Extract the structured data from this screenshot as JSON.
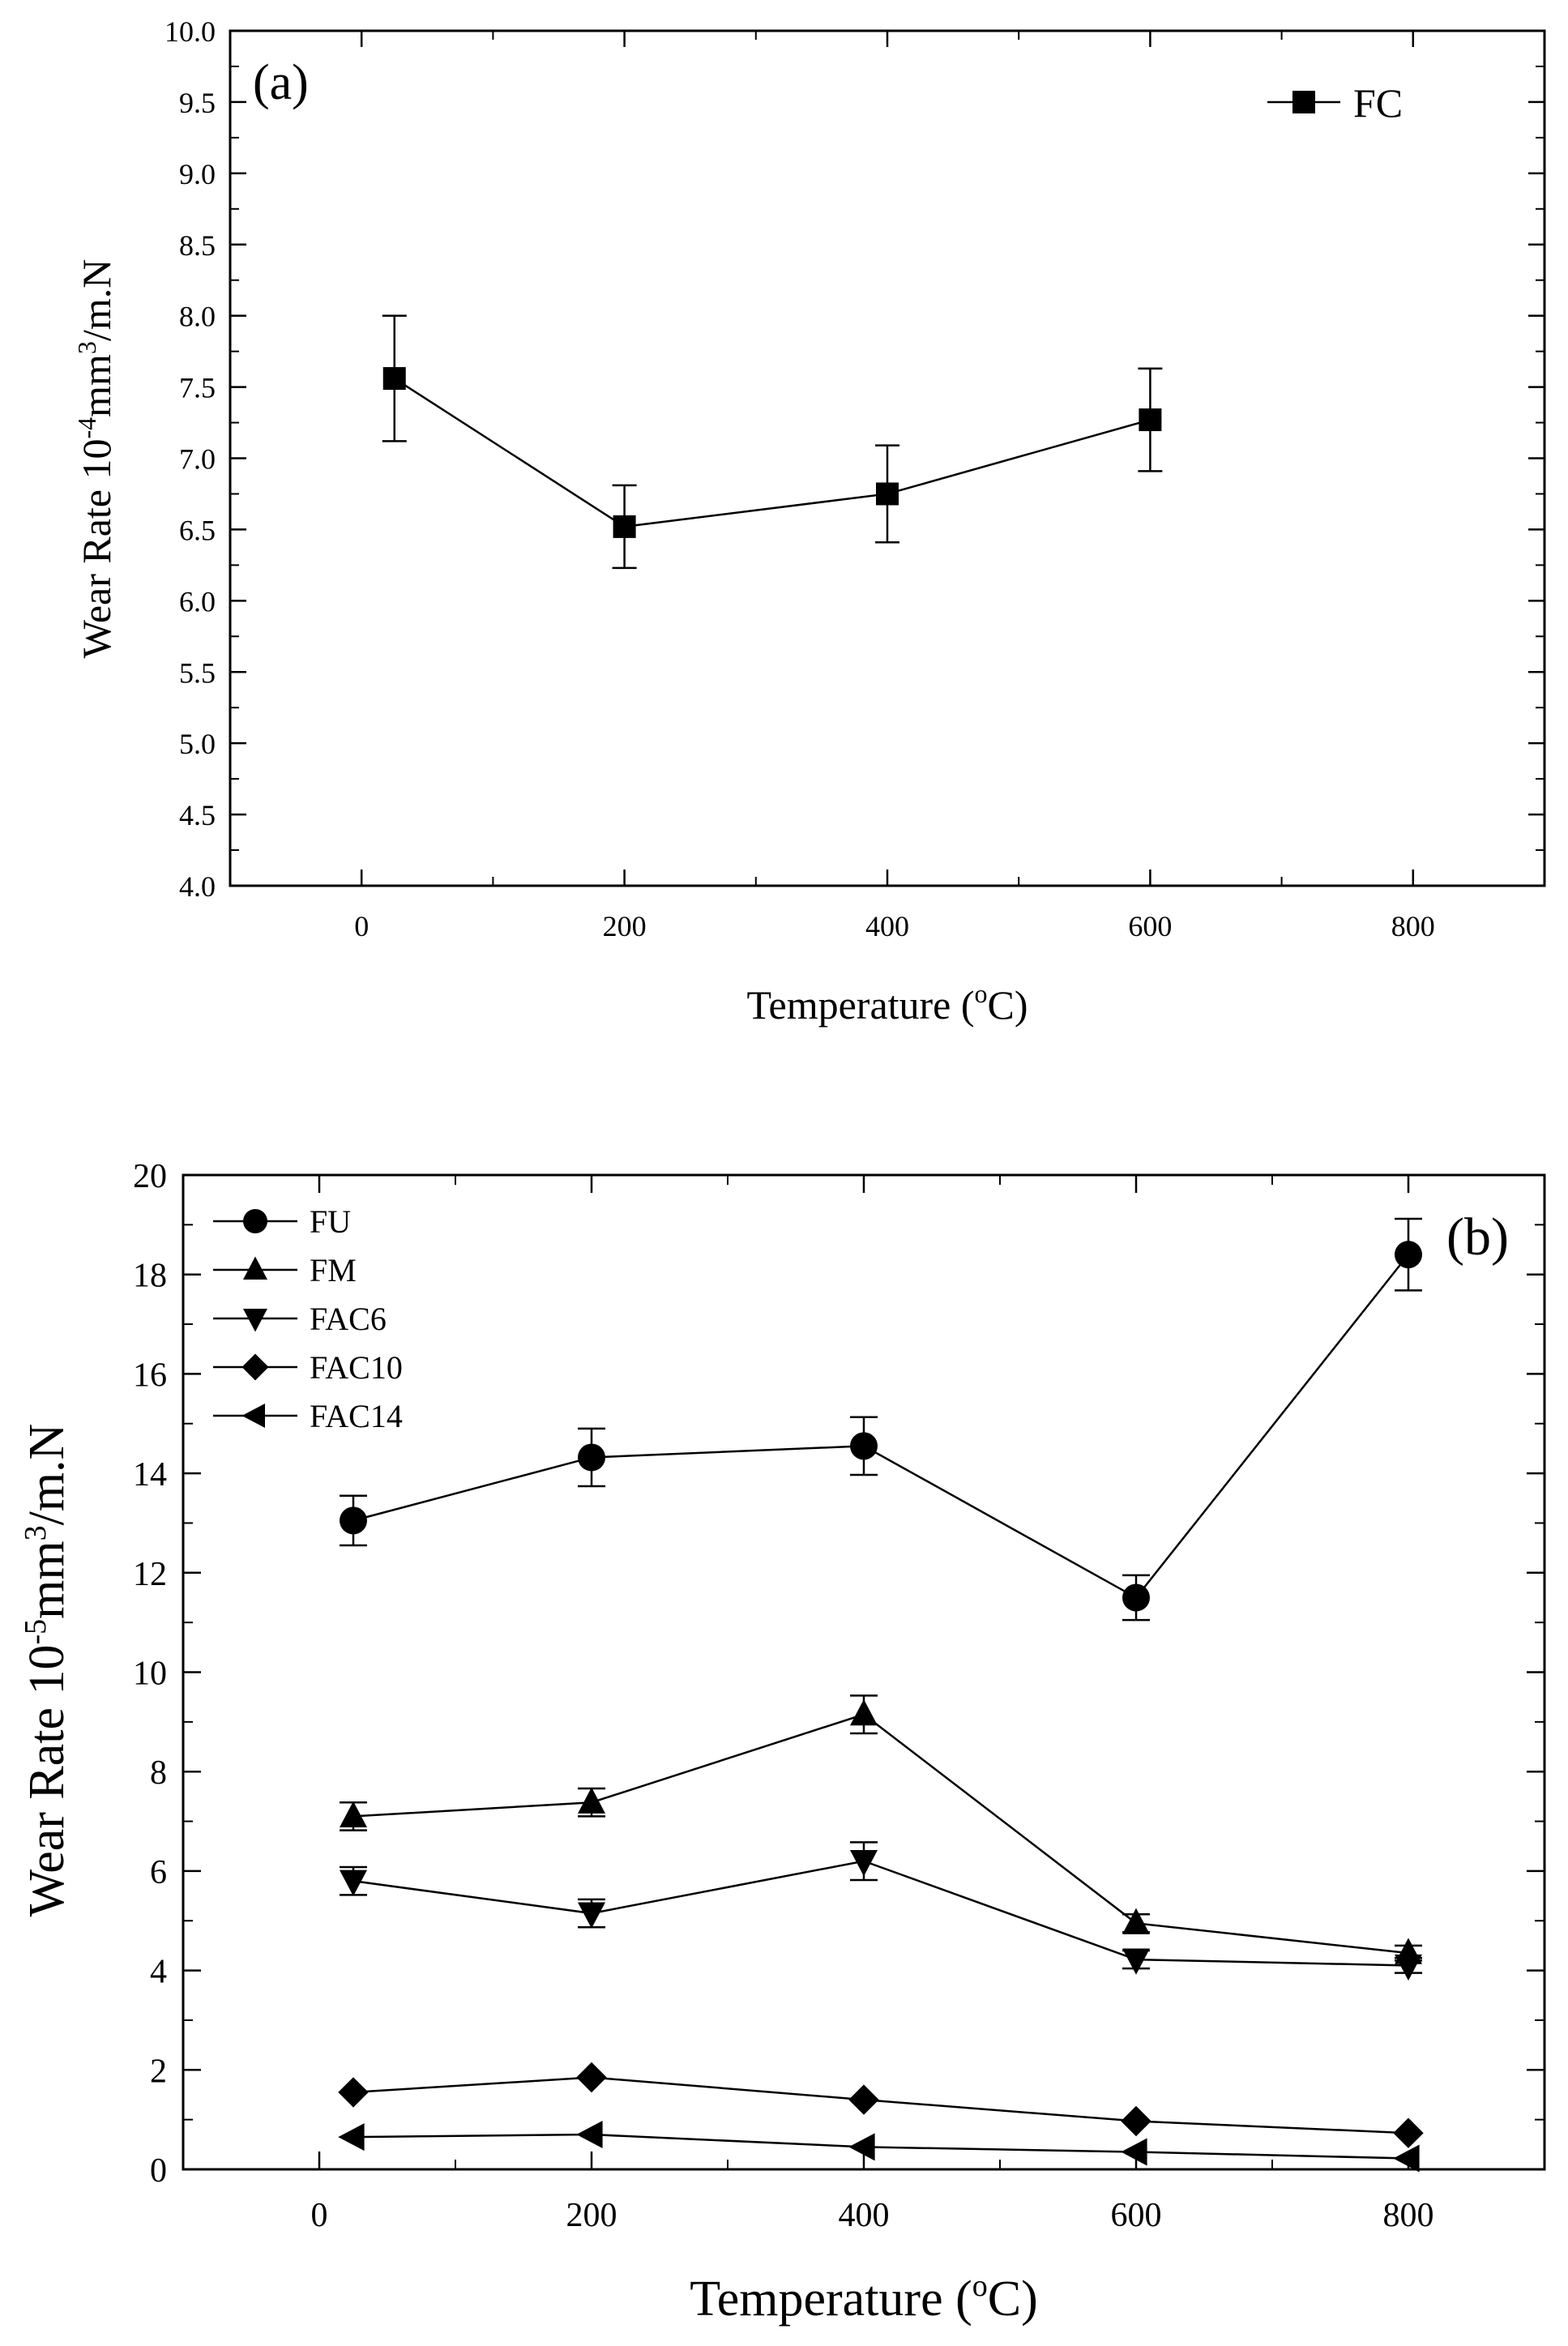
{
  "chart_data": [
    {
      "type": "line",
      "panel_label": "(a)",
      "xlabel": "Temperature",
      "xlabel_unit_open": " (",
      "xlabel_unit_sup": "o",
      "xlabel_unit_close": "C)",
      "ylabel": "Wear Rate 10",
      "ylabel_sup1": "-4",
      "ylabel_mid": "mm",
      "ylabel_sup2": "3",
      "ylabel_end": "/m.N",
      "xlim": [
        -100,
        900
      ],
      "ylim": [
        4.0,
        10.0
      ],
      "x_ticks": [
        0,
        200,
        400,
        600,
        800
      ],
      "y_ticks": [
        "4.0",
        "4.5",
        "5.0",
        "5.5",
        "6.0",
        "6.5",
        "7.0",
        "7.5",
        "8.0",
        "8.5",
        "9.0",
        "9.5",
        "10.0"
      ],
      "legend_position": "top-right",
      "series": [
        {
          "name": "FC",
          "marker": "square",
          "x": [
            25,
            200,
            400,
            600
          ],
          "y": [
            7.56,
            6.52,
            6.75,
            7.27
          ],
          "err": [
            0.44,
            0.29,
            0.34,
            0.36
          ]
        }
      ]
    },
    {
      "type": "line",
      "panel_label": "(b)",
      "xlabel": "Temperature",
      "xlabel_unit_open": " (",
      "xlabel_unit_sup": "o",
      "xlabel_unit_close": "C)",
      "ylabel": "Wear Rate 10",
      "ylabel_sup1": "-5",
      "ylabel_mid": "mm",
      "ylabel_sup2": "3",
      "ylabel_end": "/m.N",
      "xlim": [
        -100,
        900
      ],
      "ylim": [
        0,
        20
      ],
      "x_ticks": [
        0,
        200,
        400,
        600,
        800
      ],
      "y_ticks": [
        "0",
        "2",
        "4",
        "6",
        "8",
        "10",
        "12",
        "14",
        "16",
        "18",
        "20"
      ],
      "legend_position": "top-left",
      "series": [
        {
          "name": "FU",
          "marker": "circle",
          "x": [
            25,
            200,
            400,
            600,
            800
          ],
          "y": [
            13.05,
            14.32,
            14.55,
            11.5,
            18.4
          ],
          "err": [
            0.5,
            0.58,
            0.58,
            0.45,
            0.72
          ]
        },
        {
          "name": "FM",
          "marker": "triangle-up",
          "x": [
            25,
            200,
            400,
            600,
            800
          ],
          "y": [
            7.1,
            7.38,
            9.15,
            4.95,
            4.35
          ],
          "err": [
            0.28,
            0.28,
            0.38,
            0.18,
            0.15
          ]
        },
        {
          "name": "FAC6",
          "marker": "triangle-down",
          "x": [
            25,
            200,
            400,
            600,
            800
          ],
          "y": [
            5.8,
            5.15,
            6.2,
            4.22,
            4.1
          ],
          "err": [
            0.28,
            0.28,
            0.38,
            0.18,
            0.15
          ]
        },
        {
          "name": "FAC10",
          "marker": "diamond",
          "x": [
            25,
            200,
            400,
            600,
            800
          ],
          "y": [
            1.55,
            1.85,
            1.4,
            0.97,
            0.73
          ],
          "err": [
            0,
            0,
            0,
            0,
            0
          ]
        },
        {
          "name": "FAC14",
          "marker": "triangle-left",
          "x": [
            25,
            200,
            400,
            600,
            800
          ],
          "y": [
            0.65,
            0.7,
            0.45,
            0.35,
            0.22
          ],
          "err": [
            0,
            0,
            0,
            0,
            0
          ]
        }
      ]
    }
  ]
}
